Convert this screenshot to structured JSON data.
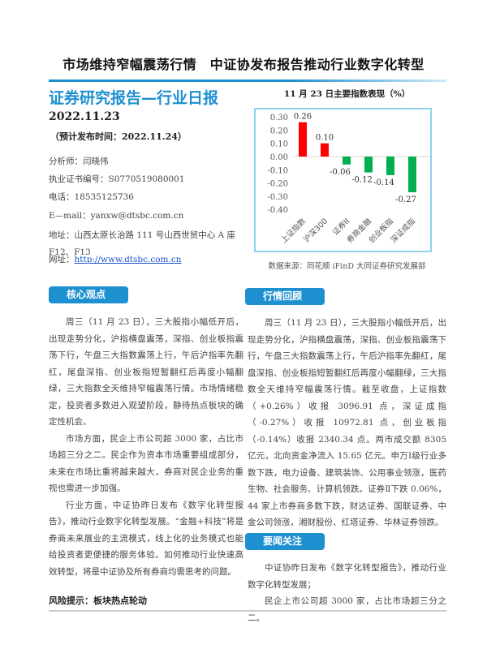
{
  "header": {
    "title": "市场维持窄幅震荡行情　中证协发布报告推动行业数字化转型"
  },
  "report": {
    "title": "证券研究报告—行业日报",
    "date": "2022.11.23",
    "publish": "（预计发布时间：2022.11.24）",
    "analyst": "分析师：闫晓伟",
    "license": "执业证书编号：S0770519080001",
    "phone": "电话：18535125736",
    "email": "E—mail：yanxw@dtsbc.com.cn",
    "address": "地址：山西太原长治路 111 号山西世贸中心 A 座 F12、F13",
    "website_label": "网址：",
    "website": "http://www.dtsbc.com.cn"
  },
  "chart_data": {
    "type": "bar",
    "title": "11 月 23 日主要指数表现（%）",
    "categories": [
      "上证指数",
      "沪深300",
      "证券II",
      "券商金融",
      "创业板指",
      "深证成指"
    ],
    "values": [
      0.26,
      0.1,
      -0.06,
      -0.12,
      -0.14,
      -0.27
    ],
    "data_labels": [
      "0.26",
      "0.10",
      "-0.06",
      "-0.12",
      "-0.14",
      "-0.27"
    ],
    "yticks": [
      "0.30",
      "0.20",
      "0.10",
      "0.00",
      "-0.10",
      "-0.20",
      "-0.30",
      "-0.40"
    ],
    "ylim": [
      -0.4,
      0.3
    ],
    "colors": {
      "positive": "#ff0000",
      "negative": "#00b050"
    },
    "grid": false,
    "source": "数据来源：同花顺 iFinD 大同证券研究发展部"
  },
  "left": {
    "badge": "核心观点",
    "paragraphs": [
      "周三（11 月 23 日），三大股指小幅低开后，出现走势分化，沪指横盘震荡，深指、创业板指震荡下行，午盘三大指数震荡上行，午后沪指率先翻红，尾盘深指、创业板指短暂翻红后再度小幅翻绿，三大指数全天维持窄幅震荡行情。市场情绪稳定，投资者多数进入观望阶段，静待热点板块的确定性机会。",
      "市场方面，民企上市公司超 3000 家，占比市场超三分之二。民企作为资本市场重要组成部分，未来在市场比重将越来越大，券商对民企业务的重视也需进一步加强。",
      "行业方面，中证协昨日发布《数字化转型报告》，推动行业数字化转型发展。“金融+科技”将是券商未来展业的主流模式，线上化的业务模式也能给投资者更便捷的服务体验。如何推动行业快速高效转型，将是中证协及所有券商均需思考的问题。"
    ],
    "risk": "风险提示：板块热点轮动"
  },
  "right": {
    "badge": "行情回顾",
    "paragraphs": [
      "周三（11 月 23 日），三大股指小幅低开后，出现走势分化，沪指横盘震荡，深指、创业板指震荡下行，午盘三大指数震荡上行，午后沪指率先翻红，尾盘深指、创业板指短暂翻红后再度小幅翻绿，三大指数全天维持窄幅震荡行情。截至收盘，上证指数（+0.26%）收报 3096.91 点，深证成指（-0.27%）收报 10972.81 点，创业板指（-0.14%）收报 2340.34 点。两市成交额 8305 亿元，北向资金净流入 15.65 亿元。申万Ⅰ级行业多数下跌，电力设备、建筑装饰、公用事业领涨，医药生物、社会服务、计算机领跌。证券Ⅱ下跌 0.06%，44 家上市券商多数下跌，财达证券、国联证券、中金公司领涨，湘财股份、红塔证券、华林证券领跌。"
    ],
    "badge2": "要闻关注",
    "news": [
      "中证协昨日发布《数字化转型报告》，推动行业数字化转型发展；",
      "民企上市公司超 3000 家，占比市场超三分之二。"
    ]
  }
}
